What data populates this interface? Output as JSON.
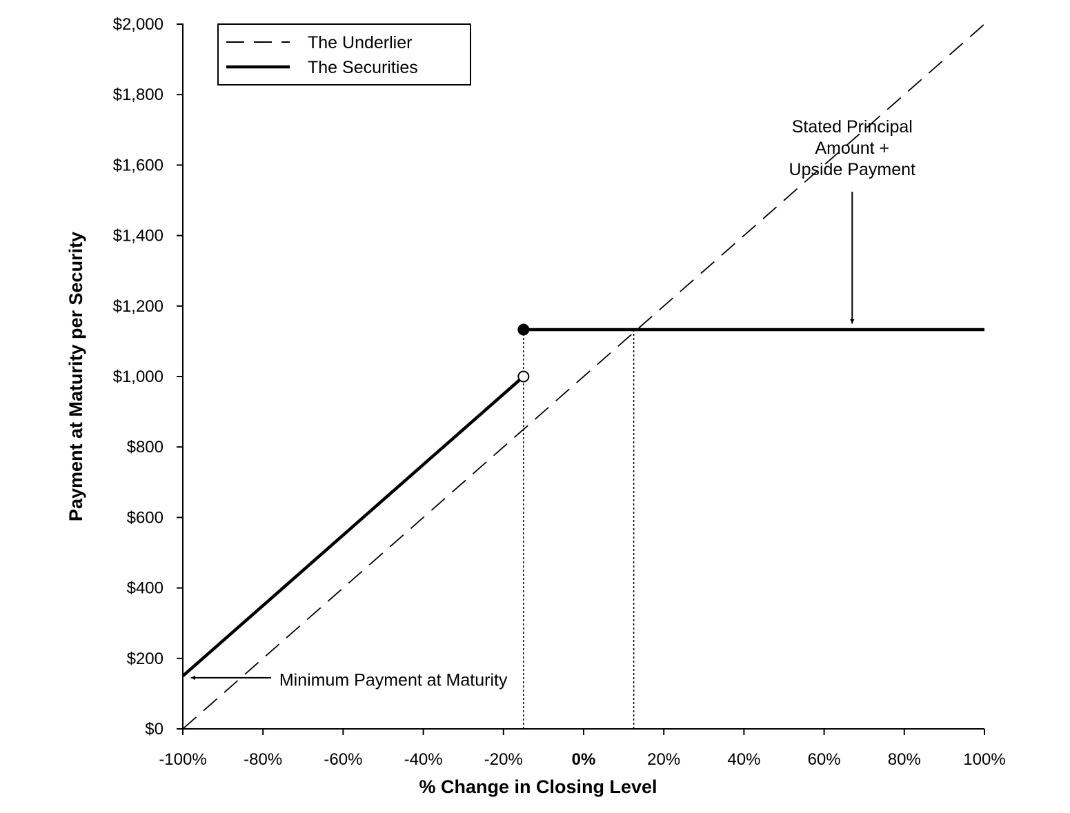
{
  "chart_data": {
    "type": "line",
    "title": "",
    "xlabel": "% Change in Closing Level",
    "ylabel": "Payment at Maturity per Security",
    "xlim": [
      -100,
      100
    ],
    "ylim": [
      0,
      2000
    ],
    "grid": false,
    "legend_position": "top-left",
    "x_ticks": [
      {
        "value": -100,
        "label": "-100%"
      },
      {
        "value": -80,
        "label": "-80%"
      },
      {
        "value": -60,
        "label": "-60%"
      },
      {
        "value": -40,
        "label": "-40%"
      },
      {
        "value": -20,
        "label": "-20%"
      },
      {
        "value": 0,
        "label": "0%"
      },
      {
        "value": 20,
        "label": "20%"
      },
      {
        "value": 40,
        "label": "40%"
      },
      {
        "value": 60,
        "label": "60%"
      },
      {
        "value": 80,
        "label": "80%"
      },
      {
        "value": 100,
        "label": "100%"
      }
    ],
    "y_ticks": [
      {
        "value": 0,
        "label": "$0"
      },
      {
        "value": 200,
        "label": "$200"
      },
      {
        "value": 400,
        "label": "$400"
      },
      {
        "value": 600,
        "label": "$600"
      },
      {
        "value": 800,
        "label": "$800"
      },
      {
        "value": 1000,
        "label": "$1,000"
      },
      {
        "value": 1200,
        "label": "$1,200"
      },
      {
        "value": 1400,
        "label": "$1,400"
      },
      {
        "value": 1600,
        "label": "$1,600"
      },
      {
        "value": 1800,
        "label": "$1,800"
      },
      {
        "value": 2000,
        "label": "$2,000"
      }
    ],
    "series": [
      {
        "name": "The Underlier",
        "style": "dashed",
        "color": "#000000",
        "points": [
          {
            "x": -100,
            "y": 0
          },
          {
            "x": 100,
            "y": 2000
          }
        ]
      },
      {
        "name": "The Securities",
        "style": "solid",
        "color": "#000000",
        "segments": [
          [
            {
              "x": -100,
              "y": 150
            },
            {
              "x": -15,
              "y": 1000
            }
          ],
          [
            {
              "x": -15,
              "y": 1133
            },
            {
              "x": 100,
              "y": 1133
            }
          ]
        ]
      }
    ],
    "markers": [
      {
        "x": -15,
        "y": 1133,
        "fill": "filled"
      },
      {
        "x": -15,
        "y": 1000,
        "fill": "open"
      }
    ],
    "reference_lines": [
      {
        "style": "dotted",
        "x": -15,
        "y_from": 0,
        "y_to": 1133
      },
      {
        "style": "dotted",
        "x": 12.5,
        "y_from": 0,
        "y_to": 1133
      }
    ],
    "annotations": [
      {
        "lines": [
          "Stated Principal",
          "Amount +",
          "Upside Payment"
        ],
        "x": 67,
        "y": 1450,
        "arrow_to": {
          "x": 67,
          "y": 1150
        }
      },
      {
        "lines": [
          "Minimum Payment at Maturity"
        ],
        "x": -78,
        "y": 140,
        "arrow_to": {
          "x": -98,
          "y": 145
        }
      }
    ]
  }
}
